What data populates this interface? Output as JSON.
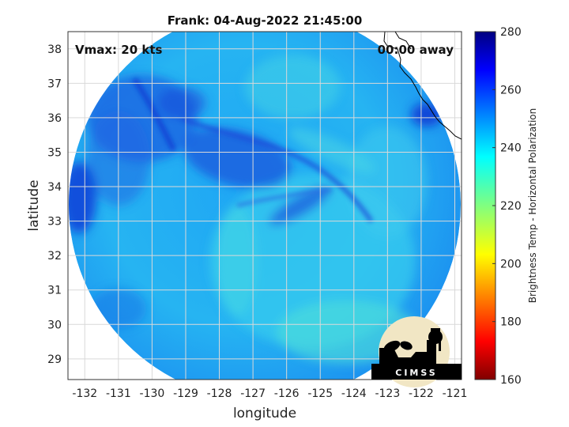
{
  "chart_data": {
    "type": "heatmap",
    "title": "Frank: 04-Aug-2022 21:45:00",
    "xlabel": "longitude",
    "ylabel": "latitude",
    "xlim": [
      -132.5,
      -120.8
    ],
    "ylim": [
      28.4,
      38.5
    ],
    "x_ticks": [
      "-132",
      "-131",
      "-130",
      "-129",
      "-128",
      "-127",
      "-126",
      "-125",
      "-124",
      "-123",
      "-122",
      "-121"
    ],
    "y_ticks": [
      "29",
      "30",
      "31",
      "32",
      "33",
      "34",
      "35",
      "36",
      "37",
      "38"
    ],
    "grid": true,
    "colorbar": {
      "label": "Brightness Temp - Horizontal Polarization",
      "range": [
        160,
        280
      ],
      "ticks": [
        "160",
        "180",
        "200",
        "220",
        "240",
        "260",
        "280"
      ],
      "colormap": "jet"
    },
    "annotations": {
      "vmax": "Vmax: 20 kts",
      "time_away": "00:00 away"
    },
    "swath": {
      "center": [
        -126.7,
        33.4
      ],
      "radius_deg": 4.1
    }
  },
  "logo": {
    "text": "CIMSS"
  }
}
